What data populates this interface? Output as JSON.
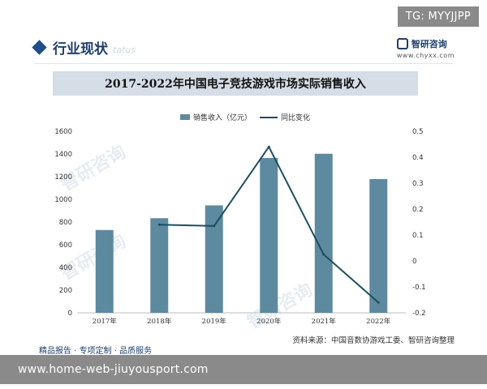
{
  "tag": {
    "text": "TG: MYYJJPP"
  },
  "brand": {
    "name": "智研咨询",
    "url": "www.chyxx.com"
  },
  "section": {
    "title": "行业现状",
    "ghost": "tatus"
  },
  "watermarks": [
    "智研咨询",
    "智研咨询",
    "智研咨询"
  ],
  "source_note": "资料来源：中国音数协游戏工委、智研咨询整理",
  "footer": "精品报告 · 专项定制 · 品质服务",
  "bottom_url": "www.home-web-jiuyousport.com",
  "colors": {
    "bar": "#5e8aa0",
    "line": "#1d4e60"
  },
  "chart_data": {
    "type": "bar",
    "title": "2017-2022年中国电子竞技游戏市场实际销售收入",
    "categories": [
      "2017年",
      "2018年",
      "2019年",
      "2020年",
      "2021年",
      "2022年"
    ],
    "series": [
      {
        "name": "销售收入（亿元）",
        "type": "bar",
        "axis": "left",
        "values": [
          730,
          834,
          947,
          1365,
          1402,
          1179
        ]
      },
      {
        "name": "同比变化",
        "type": "line",
        "axis": "right",
        "values": [
          null,
          0.14,
          0.135,
          0.44,
          0.025,
          -0.16
        ]
      }
    ],
    "ylim": [
      0,
      1600
    ],
    "y_ticks": [
      0,
      200,
      400,
      600,
      800,
      1000,
      1200,
      1400,
      1600
    ],
    "y2lim": [
      -0.2,
      0.5
    ],
    "y2_ticks": [
      "0.5",
      "0.4",
      "0.3",
      "0.2",
      "0.1",
      "0",
      "-0.1",
      "-0.2"
    ],
    "legend": "top-center",
    "grid": false
  }
}
